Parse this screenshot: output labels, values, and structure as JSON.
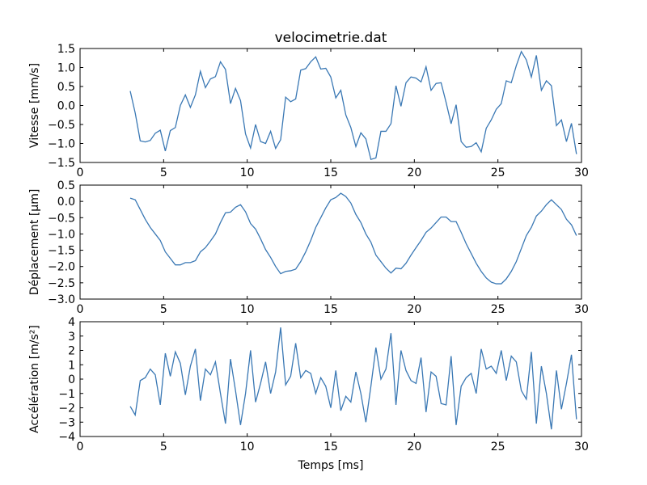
{
  "chart_data": [
    {
      "type": "line",
      "title": "velocimetrie.dat",
      "ylabel": "Vitesse [mm/s]",
      "color": "#3a78b4",
      "x": [
        3.0,
        3.3,
        3.6,
        3.9,
        4.2,
        4.5,
        4.8,
        5.1,
        5.4,
        5.7,
        6.0,
        6.3,
        6.6,
        6.9,
        7.2,
        7.5,
        7.8,
        8.1,
        8.4,
        8.7,
        9.0,
        9.3,
        9.6,
        9.9,
        10.2,
        10.5,
        10.8,
        11.1,
        11.4,
        11.7,
        12.0,
        12.3,
        12.6,
        12.9,
        13.2,
        13.5,
        13.8,
        14.1,
        14.4,
        14.7,
        15.0,
        15.3,
        15.6,
        15.9,
        16.2,
        16.5,
        16.8,
        17.1,
        17.4,
        17.7,
        18.0,
        18.3,
        18.6,
        18.9,
        19.2,
        19.5,
        19.8,
        20.1,
        20.4,
        20.7,
        21.0,
        21.3,
        21.6,
        21.9,
        22.2,
        22.5,
        22.8,
        23.1,
        23.4,
        23.7,
        24.0,
        24.3,
        24.6,
        24.9,
        25.2,
        25.5,
        25.8,
        26.1,
        26.4,
        26.7,
        27.0,
        27.3,
        27.6,
        27.9,
        28.2,
        28.5,
        28.8,
        29.1,
        29.4,
        29.7
      ],
      "values": [
        0.38,
        -0.2,
        -0.93,
        -0.96,
        -0.92,
        -0.73,
        -0.65,
        -1.2,
        -0.66,
        -0.58,
        0,
        0.28,
        -0.05,
        0.28,
        0.9,
        0.47,
        0.7,
        0.76,
        1.15,
        0.95,
        0.05,
        0.45,
        0.13,
        -0.75,
        -1.12,
        -0.5,
        -0.95,
        -1.0,
        -0.68,
        -1.13,
        -0.9,
        0.22,
        0.1,
        0.17,
        0.93,
        0.97,
        1.15,
        1.28,
        0.96,
        0.98,
        0.75,
        0.2,
        0.4,
        -0.25,
        -0.58,
        -1.08,
        -0.72,
        -0.88,
        -1.42,
        -1.38,
        -0.68,
        -0.68,
        -0.48,
        0.52,
        -0.02,
        0.6,
        0.75,
        0.72,
        0.62,
        1.02,
        0.4,
        0.58,
        0.6,
        0.08,
        -0.48,
        0.02,
        -0.95,
        -1.1,
        -1.08,
        -0.98,
        -1.22,
        -0.6,
        -0.38,
        -0.1,
        0.05,
        0.65,
        0.6,
        1.05,
        1.42,
        1.2,
        0.75,
        1.32,
        0.4,
        0.65,
        0.52,
        -0.53,
        -0.38,
        -0.95,
        -0.47,
        -1.28
      ],
      "xlim": [
        0,
        30
      ],
      "xticks": [
        0,
        5,
        10,
        15,
        20,
        25,
        30
      ],
      "ylim": [
        -1.5,
        1.5
      ],
      "yticks": [
        {
          "value": -1.5,
          "label": "−1.5"
        },
        {
          "value": -1,
          "label": "−1.0"
        },
        {
          "value": -0.5,
          "label": "−0.5"
        },
        {
          "value": 0,
          "label": "0.0"
        },
        {
          "value": 0.5,
          "label": "0.5"
        },
        {
          "value": 1,
          "label": "1.0"
        },
        {
          "value": 1.5,
          "label": "1.5"
        }
      ]
    },
    {
      "type": "line",
      "ylabel": "Déplacement [µm]",
      "color": "#3a78b4",
      "x": [
        3.0,
        3.3,
        3.6,
        3.9,
        4.2,
        4.5,
        4.8,
        5.1,
        5.4,
        5.7,
        6.0,
        6.3,
        6.6,
        6.9,
        7.2,
        7.5,
        7.8,
        8.1,
        8.4,
        8.7,
        9.0,
        9.3,
        9.6,
        9.9,
        10.2,
        10.5,
        10.8,
        11.1,
        11.4,
        11.7,
        12.0,
        12.3,
        12.6,
        12.9,
        13.2,
        13.5,
        13.8,
        14.1,
        14.4,
        14.7,
        15.0,
        15.3,
        15.6,
        15.9,
        16.2,
        16.5,
        16.8,
        17.1,
        17.4,
        17.7,
        18.0,
        18.3,
        18.6,
        18.9,
        19.2,
        19.5,
        19.8,
        20.1,
        20.4,
        20.7,
        21.0,
        21.3,
        21.6,
        21.9,
        22.2,
        22.5,
        22.8,
        23.1,
        23.4,
        23.7,
        24.0,
        24.3,
        24.6,
        24.9,
        25.2,
        25.5,
        25.8,
        26.1,
        26.4,
        26.7,
        27.0,
        27.3,
        27.6,
        27.9,
        28.2,
        28.5,
        28.8,
        29.1,
        29.4,
        29.7
      ],
      "values": [
        0.1,
        0.05,
        -0.25,
        -0.55,
        -0.8,
        -1.0,
        -1.2,
        -1.55,
        -1.75,
        -1.95,
        -1.95,
        -1.88,
        -1.88,
        -1.82,
        -1.55,
        -1.42,
        -1.22,
        -1.0,
        -0.65,
        -0.35,
        -0.33,
        -0.18,
        -0.1,
        -0.32,
        -0.68,
        -0.85,
        -1.15,
        -1.48,
        -1.72,
        -2.0,
        -2.22,
        -2.15,
        -2.13,
        -2.08,
        -1.85,
        -1.55,
        -1.2,
        -0.8,
        -0.5,
        -0.2,
        0.05,
        0.12,
        0.25,
        0.15,
        -0.05,
        -0.4,
        -0.65,
        -1.0,
        -1.25,
        -1.65,
        -1.85,
        -2.05,
        -2.2,
        -2.05,
        -2.07,
        -1.9,
        -1.65,
        -1.42,
        -1.2,
        -0.95,
        -0.82,
        -0.65,
        -0.48,
        -0.48,
        -0.62,
        -0.62,
        -0.95,
        -1.3,
        -1.6,
        -1.9,
        -2.15,
        -2.35,
        -2.48,
        -2.53,
        -2.53,
        -2.38,
        -2.15,
        -1.85,
        -1.45,
        -1.05,
        -0.8,
        -0.45,
        -0.3,
        -0.1,
        0.05,
        -0.1,
        -0.25,
        -0.55,
        -0.72,
        -1.05
      ],
      "xlim": [
        0,
        30
      ],
      "xticks": [
        0,
        5,
        10,
        15,
        20,
        25,
        30
      ],
      "ylim": [
        -3,
        0.5
      ],
      "yticks": [
        {
          "value": -3,
          "label": "−3.0"
        },
        {
          "value": -2.5,
          "label": "−2.5"
        },
        {
          "value": -2,
          "label": "−2.0"
        },
        {
          "value": -1.5,
          "label": "−1.5"
        },
        {
          "value": -1,
          "label": "−1.0"
        },
        {
          "value": -0.5,
          "label": "−0.5"
        },
        {
          "value": 0,
          "label": "0.0"
        },
        {
          "value": 0.5,
          "label": "0.5"
        }
      ]
    },
    {
      "type": "line",
      "ylabel": "Accélération [m/s²]",
      "xlabel": "Temps [ms]",
      "color": "#3a78b4",
      "x": [
        3.0,
        3.3,
        3.6,
        3.9,
        4.2,
        4.5,
        4.8,
        5.1,
        5.4,
        5.7,
        6.0,
        6.3,
        6.6,
        6.9,
        7.2,
        7.5,
        7.8,
        8.1,
        8.4,
        8.7,
        9.0,
        9.3,
        9.6,
        9.9,
        10.2,
        10.5,
        10.8,
        11.1,
        11.4,
        11.7,
        12.0,
        12.3,
        12.6,
        12.9,
        13.2,
        13.5,
        13.8,
        14.1,
        14.4,
        14.7,
        15.0,
        15.3,
        15.6,
        15.9,
        16.2,
        16.5,
        16.8,
        17.1,
        17.4,
        17.7,
        18.0,
        18.3,
        18.6,
        18.9,
        19.2,
        19.5,
        19.8,
        20.1,
        20.4,
        20.7,
        21.0,
        21.3,
        21.6,
        21.9,
        22.2,
        22.5,
        22.8,
        23.1,
        23.4,
        23.7,
        24.0,
        24.3,
        24.6,
        24.9,
        25.2,
        25.5,
        25.8,
        26.1,
        26.4,
        26.7,
        27.0,
        27.3,
        27.6,
        27.9,
        28.2,
        28.5,
        28.8,
        29.1,
        29.4,
        29.7
      ],
      "values": [
        -1.9,
        -2.5,
        -0.1,
        0.1,
        0.7,
        0.3,
        -1.8,
        1.8,
        0.2,
        1.9,
        1.1,
        -1.1,
        0.9,
        2.1,
        -1.5,
        0.7,
        0.3,
        1.2,
        -1.0,
        -3.1,
        1.4,
        -0.8,
        -3.2,
        -1.0,
        2.0,
        -1.6,
        -0.3,
        1.2,
        -1.0,
        0.5,
        3.6,
        -0.4,
        0.2,
        2.5,
        0.1,
        0.6,
        0.4,
        -1.0,
        0.1,
        -0.5,
        -2.0,
        0.6,
        -2.2,
        -1.2,
        -1.6,
        0.5,
        -1.0,
        -3.0,
        -0.5,
        2.2,
        0.0,
        0.7,
        3.2,
        -1.8,
        2.0,
        0.6,
        -0.1,
        -0.3,
        1.5,
        -2.3,
        0.5,
        0.2,
        -1.7,
        -1.8,
        1.6,
        -3.2,
        -0.5,
        0.1,
        0.4,
        -1.0,
        2.1,
        0.7,
        0.9,
        0.4,
        2.0,
        -0.1,
        1.6,
        1.2,
        -0.8,
        -1.4,
        1.9,
        -3.1,
        0.9,
        -1.0,
        -3.5,
        0.6,
        -2.1,
        -0.3,
        1.7,
        -2.8
      ],
      "xlim": [
        0,
        30
      ],
      "xticks": [
        0,
        5,
        10,
        15,
        20,
        25,
        30
      ],
      "ylim": [
        -4,
        4
      ],
      "yticks": [
        {
          "value": -4,
          "label": "−4"
        },
        {
          "value": -3,
          "label": "−3"
        },
        {
          "value": -2,
          "label": "−2"
        },
        {
          "value": -1,
          "label": "−1"
        },
        0,
        1,
        2,
        3,
        4
      ]
    }
  ]
}
